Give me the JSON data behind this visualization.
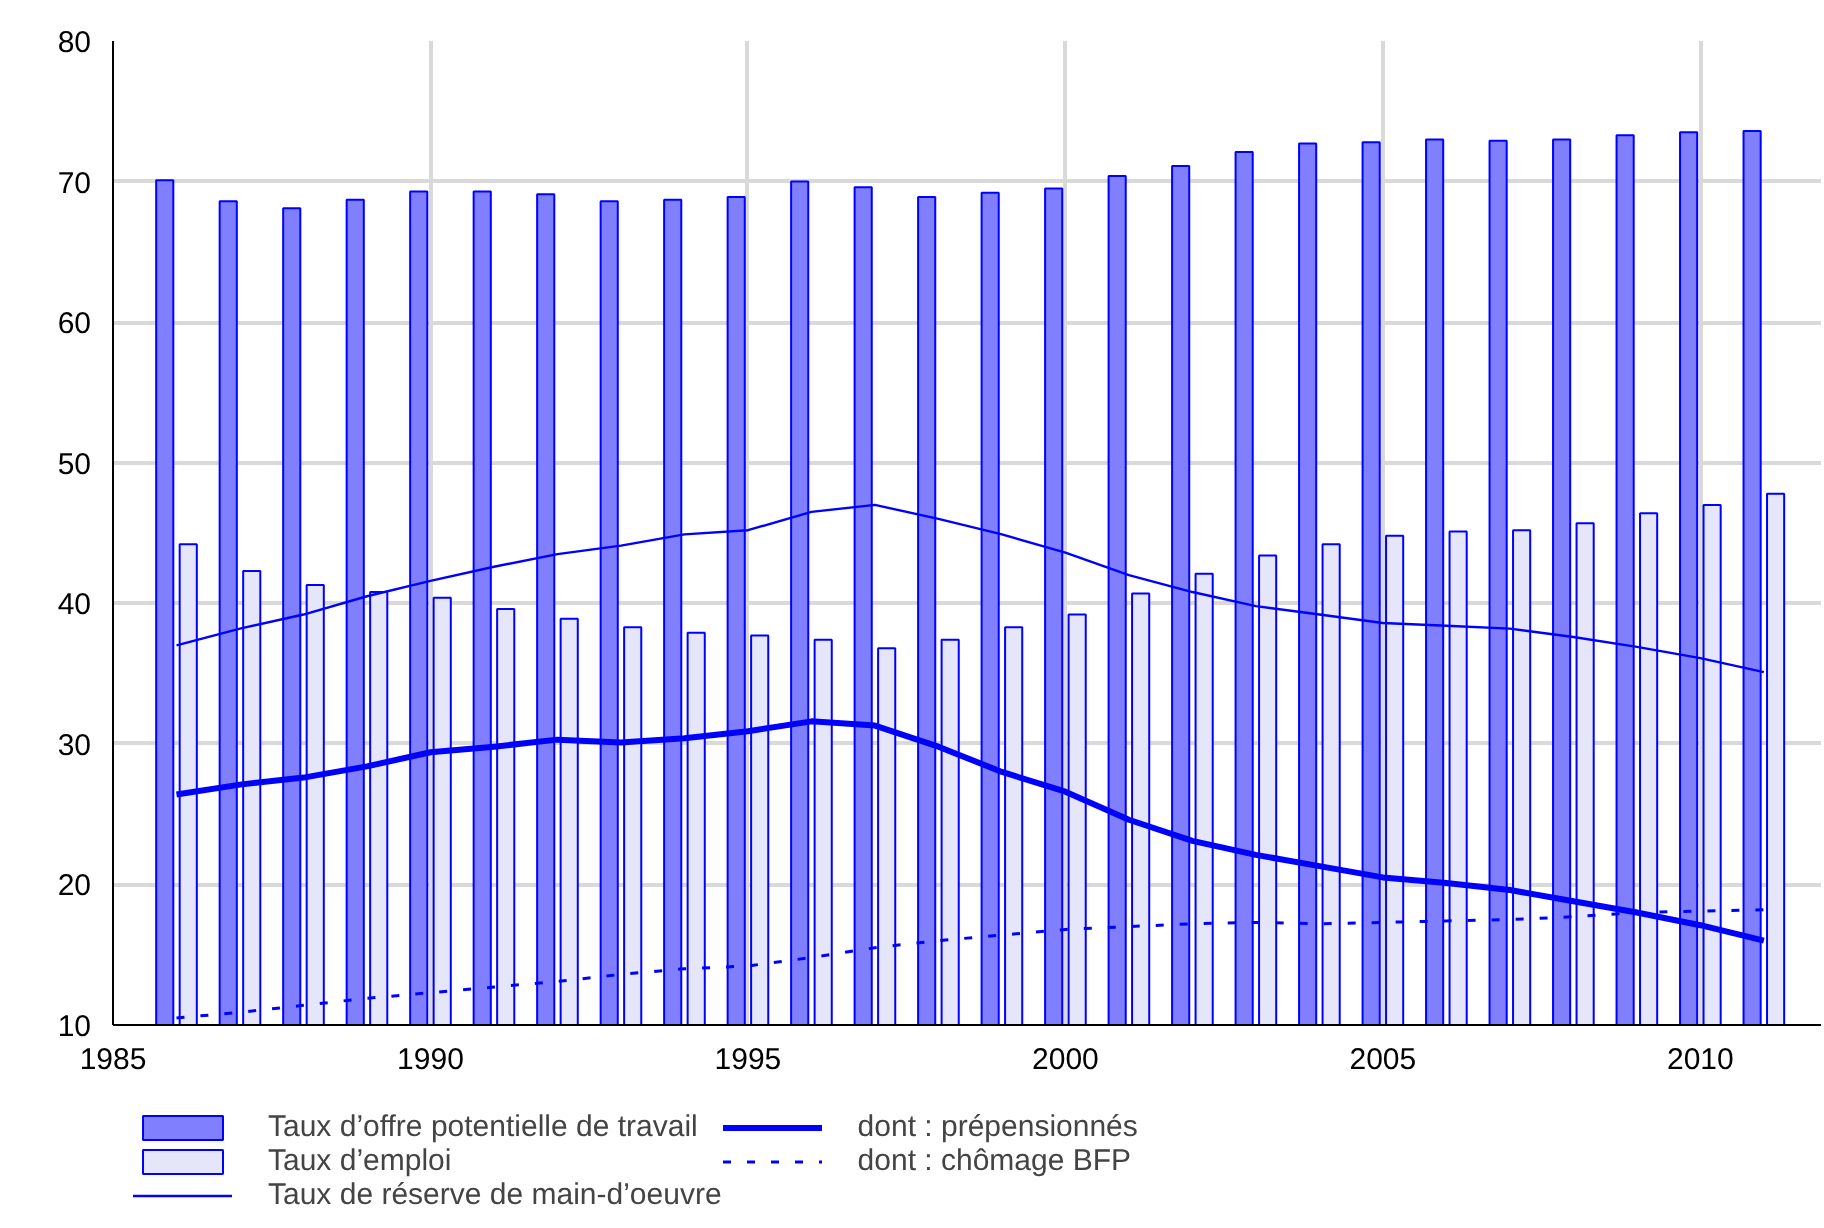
{
  "chart_data": {
    "type": "bar",
    "x": [
      1986,
      1987,
      1988,
      1989,
      1990,
      1991,
      1992,
      1993,
      1994,
      1995,
      1996,
      1997,
      1998,
      1999,
      2000,
      2001,
      2002,
      2003,
      2004,
      2005,
      2006,
      2007,
      2008,
      2009,
      2010,
      2011
    ],
    "xlim": [
      1985,
      2011.9
    ],
    "xticks": [
      1985,
      1990,
      1995,
      2000,
      2005,
      2010
    ],
    "ylim": [
      10,
      80
    ],
    "yticks": [
      10,
      20,
      30,
      40,
      50,
      60,
      70,
      80
    ],
    "grid": true,
    "legend": "bottom",
    "series": [
      {
        "name": "Taux d’offre potentielle de travail",
        "color": "#8080ff",
        "values": [
          70.1,
          68.6,
          68.1,
          68.7,
          69.3,
          69.3,
          69.1,
          68.6,
          68.7,
          68.9,
          70.0,
          69.6,
          68.9,
          69.2,
          69.5,
          70.4,
          71.1,
          72.1,
          72.7,
          72.8,
          73.0,
          72.9,
          73.0,
          73.3,
          73.5,
          73.6
        ]
      },
      {
        "name": "Taux d’emploi",
        "color": "#e6e6fa",
        "values": [
          44.2,
          42.3,
          41.3,
          40.8,
          40.4,
          39.6,
          38.9,
          38.3,
          37.9,
          37.7,
          37.4,
          36.8,
          37.4,
          38.3,
          39.2,
          40.7,
          42.1,
          43.4,
          44.2,
          44.8,
          45.1,
          45.2,
          45.7,
          46.4,
          47.0,
          47.8
        ]
      },
      {
        "name": "Taux de réserve de main-d’oeuvre",
        "type": "line",
        "line_style": "solid",
        "color": "#0000ff",
        "values": [
          37.0,
          38.2,
          39.2,
          40.5,
          41.6,
          42.6,
          43.5,
          44.1,
          44.9,
          45.2,
          46.5,
          47.0,
          46.0,
          44.9,
          43.6,
          42.0,
          40.8,
          39.8,
          39.2,
          38.6,
          38.4,
          38.2,
          37.6,
          36.9,
          36.1,
          35.1
        ]
      },
      {
        "name": "dont : prépensionnés",
        "type": "line",
        "line_style": "solid",
        "color": "#0000ff",
        "values": [
          26.4,
          27.1,
          27.6,
          28.4,
          29.4,
          29.8,
          30.3,
          30.1,
          30.4,
          30.9,
          31.6,
          31.3,
          29.8,
          28.0,
          26.6,
          24.6,
          23.1,
          22.1,
          21.3,
          20.5,
          20.1,
          19.6,
          18.8,
          18.0,
          17.1,
          16.0
        ]
      },
      {
        "name": "dont : chômage BFP",
        "type": "line",
        "line_style": "dashed",
        "color": "#0000ff",
        "values": [
          10.5,
          10.9,
          11.4,
          11.9,
          12.3,
          12.7,
          13.1,
          13.6,
          14.0,
          14.2,
          14.8,
          15.5,
          16.0,
          16.4,
          16.8,
          17.0,
          17.2,
          17.3,
          17.2,
          17.3,
          17.4,
          17.5,
          17.7,
          18.0,
          18.1,
          18.2
        ]
      }
    ]
  }
}
